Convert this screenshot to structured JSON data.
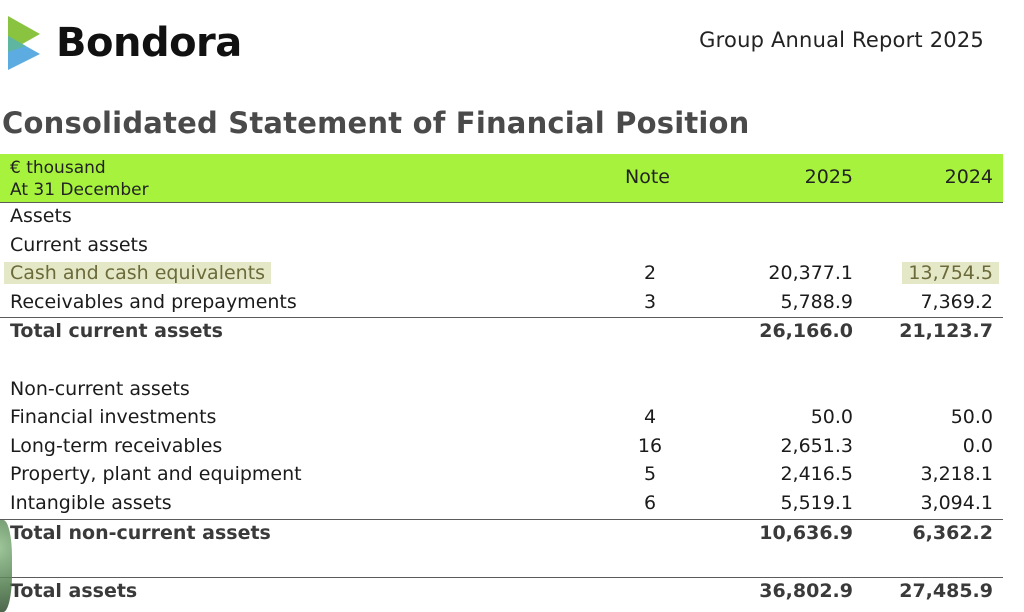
{
  "brand": {
    "name": "Bondora",
    "logo_icon": "bondora-logo-icon",
    "colors": {
      "green": "#8ac33f",
      "blue": "#4aa3df",
      "lightgreen": "#a6f23c"
    }
  },
  "report_title": "Group Annual Report 2025",
  "statement_title": "Consolidated Statement of Financial Position",
  "table": {
    "header": {
      "unit": "€ thousand",
      "date": "At 31 December",
      "note": "Note",
      "y2025": "2025",
      "y2024": "2024"
    },
    "rows": [
      {
        "label": "Assets",
        "note": "",
        "v2025": "",
        "v2024": ""
      },
      {
        "label": "Current assets",
        "note": "",
        "v2025": "",
        "v2024": ""
      },
      {
        "label": "Cash and cash equivalents",
        "note": "2",
        "v2025": "20,377.1",
        "v2024": "13,754.5"
      },
      {
        "label": "Receivables and prepayments",
        "note": "3",
        "v2025": "5,788.9",
        "v2024": "7,369.2"
      },
      {
        "label": "Total current assets",
        "note": "",
        "v2025": "26,166.0",
        "v2024": "21,123.7"
      },
      {
        "label": "Non-current assets",
        "note": "",
        "v2025": "",
        "v2024": ""
      },
      {
        "label": "Financial investments",
        "note": "4",
        "v2025": "50.0",
        "v2024": "50.0"
      },
      {
        "label": "Long-term receivables",
        "note": "16",
        "v2025": "2,651.3",
        "v2024": "0.0"
      },
      {
        "label": "Property, plant and equipment",
        "note": "5",
        "v2025": "2,416.5",
        "v2024": "3,218.1"
      },
      {
        "label": "Intangible assets",
        "note": "6",
        "v2025": "5,519.1",
        "v2024": "3,094.1"
      },
      {
        "label": "Total non-current assets",
        "note": "",
        "v2025": "10,636.9",
        "v2024": "6,362.2"
      },
      {
        "label": "Total assets",
        "note": "",
        "v2025": "36,802.9",
        "v2024": "27,485.9"
      }
    ]
  }
}
